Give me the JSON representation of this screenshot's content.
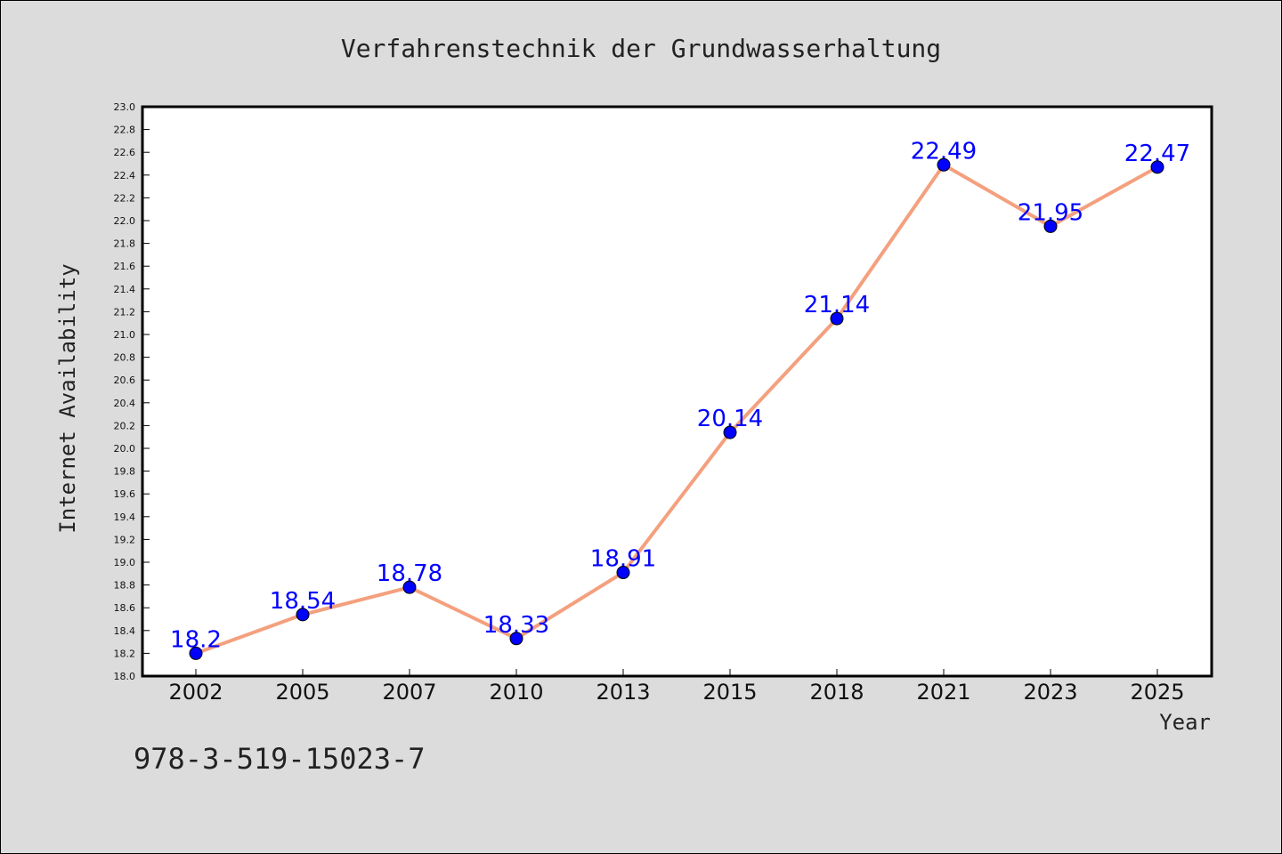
{
  "chart_data": {
    "type": "line",
    "title": "Verfahrenstechnik der Grundwasserhaltung",
    "xlabel": "Year",
    "ylabel": "Internet Availability",
    "categories": [
      "2002",
      "2005",
      "2007",
      "2010",
      "2013",
      "2015",
      "2018",
      "2021",
      "2023",
      "2025"
    ],
    "series": [
      {
        "values": [
          18.2,
          18.54,
          18.78,
          18.33,
          18.91,
          20.14,
          21.14,
          22.49,
          21.95,
          22.47
        ],
        "labels": [
          "18.2",
          "18.54",
          "18.78",
          "18.33",
          "18.91",
          "20.14",
          "21.14",
          "22.49",
          "21.95",
          "22.47"
        ]
      }
    ],
    "ylim": [
      18.0,
      23.0
    ],
    "ytick_step": 0.2,
    "grid": false,
    "line_color": "#f4a07e",
    "marker_color": "#0000ff",
    "label_color": "#0000ff"
  },
  "footnote": "978-3-519-15023-7"
}
